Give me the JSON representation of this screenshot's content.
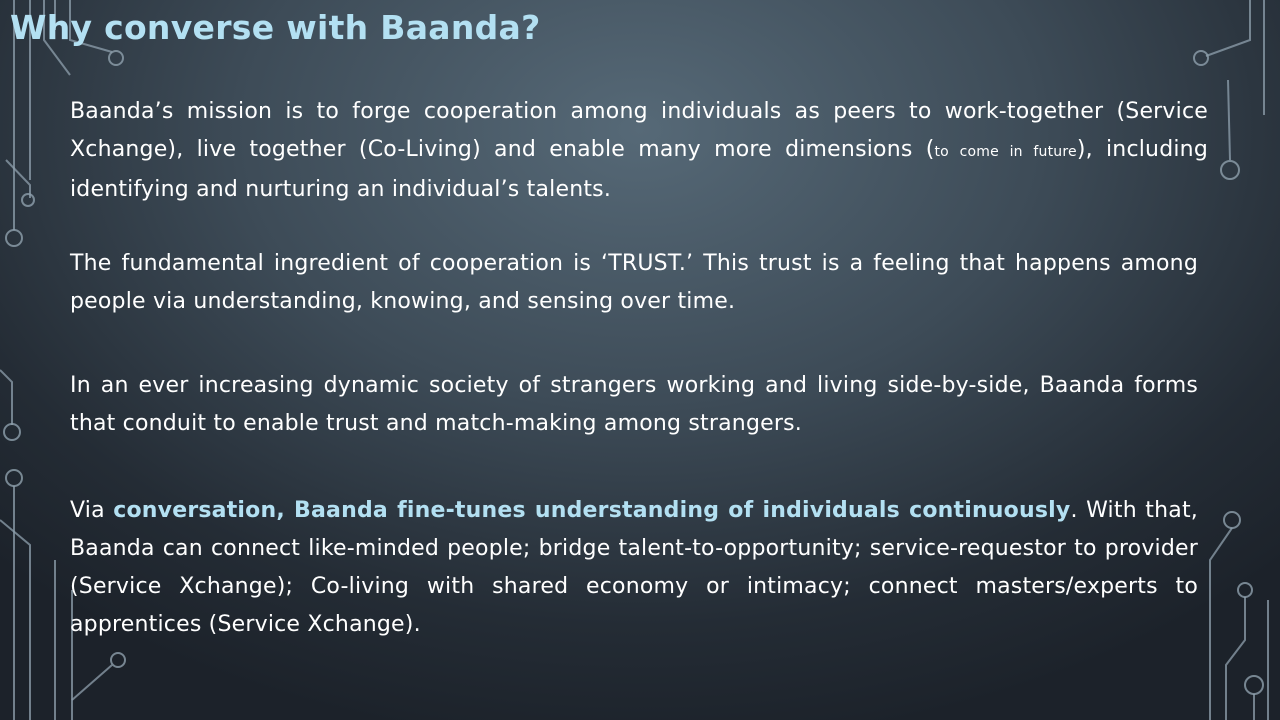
{
  "slide": {
    "title": "Why converse with Baanda?",
    "p1": {
      "part1": "Baanda’s mission is to forge cooperation among individuals as peers to work-together (Service Xchange), live together (Co-Living) and enable many more dimensions (",
      "small1": "to come in future",
      "part2": "), including identifying and nurturing an individual’s talents."
    },
    "p2": "The fundamental ingredient of cooperation is ‘TRUST.’ This trust is a feeling that happens among people via understanding, knowing, and sensing over time.",
    "p3": "In an ever increasing dynamic society of strangers working and living side-by-side, Baanda forms that conduit to enable trust and match-making among strangers.",
    "p4": {
      "lead": "Via ",
      "highlight": "conversation, Baanda fine-tunes understanding of individuals continuously",
      "rest": ". With that, Baanda can connect like-minded people; bridge talent-to-opportunity; service-requestor to provider (Service Xchange); Co-living with shared economy or intimacy; connect masters/experts to apprentices (Service Xchange)."
    }
  },
  "colors": {
    "title": "#b3e0f2",
    "highlight": "#b3e0f2",
    "body_text": "#ffffff",
    "circuit": "#8fa0ad"
  }
}
